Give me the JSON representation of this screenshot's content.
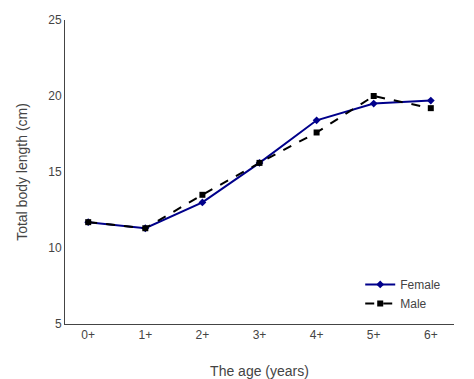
{
  "chart_data": {
    "type": "line",
    "xlabel": "The age (years)",
    "ylabel": "Total body length (cm)",
    "categories": [
      "0+",
      "1+",
      "2+",
      "3+",
      "4+",
      "5+",
      "6+"
    ],
    "series": [
      {
        "name": "Female",
        "color": "#00008B",
        "marker": "diamond",
        "line_style": "solid",
        "values": [
          11.7,
          11.3,
          13.0,
          15.6,
          18.4,
          19.5,
          19.7
        ]
      },
      {
        "name": "Male",
        "color": "#000000",
        "marker": "square",
        "line_style": "dashed",
        "values": [
          11.7,
          11.3,
          13.5,
          15.6,
          17.6,
          20.0,
          19.2
        ]
      }
    ],
    "ylim": [
      5,
      25
    ],
    "yticks": [
      5,
      10,
      15,
      20,
      25
    ],
    "grid": false,
    "legend": "lower right"
  }
}
